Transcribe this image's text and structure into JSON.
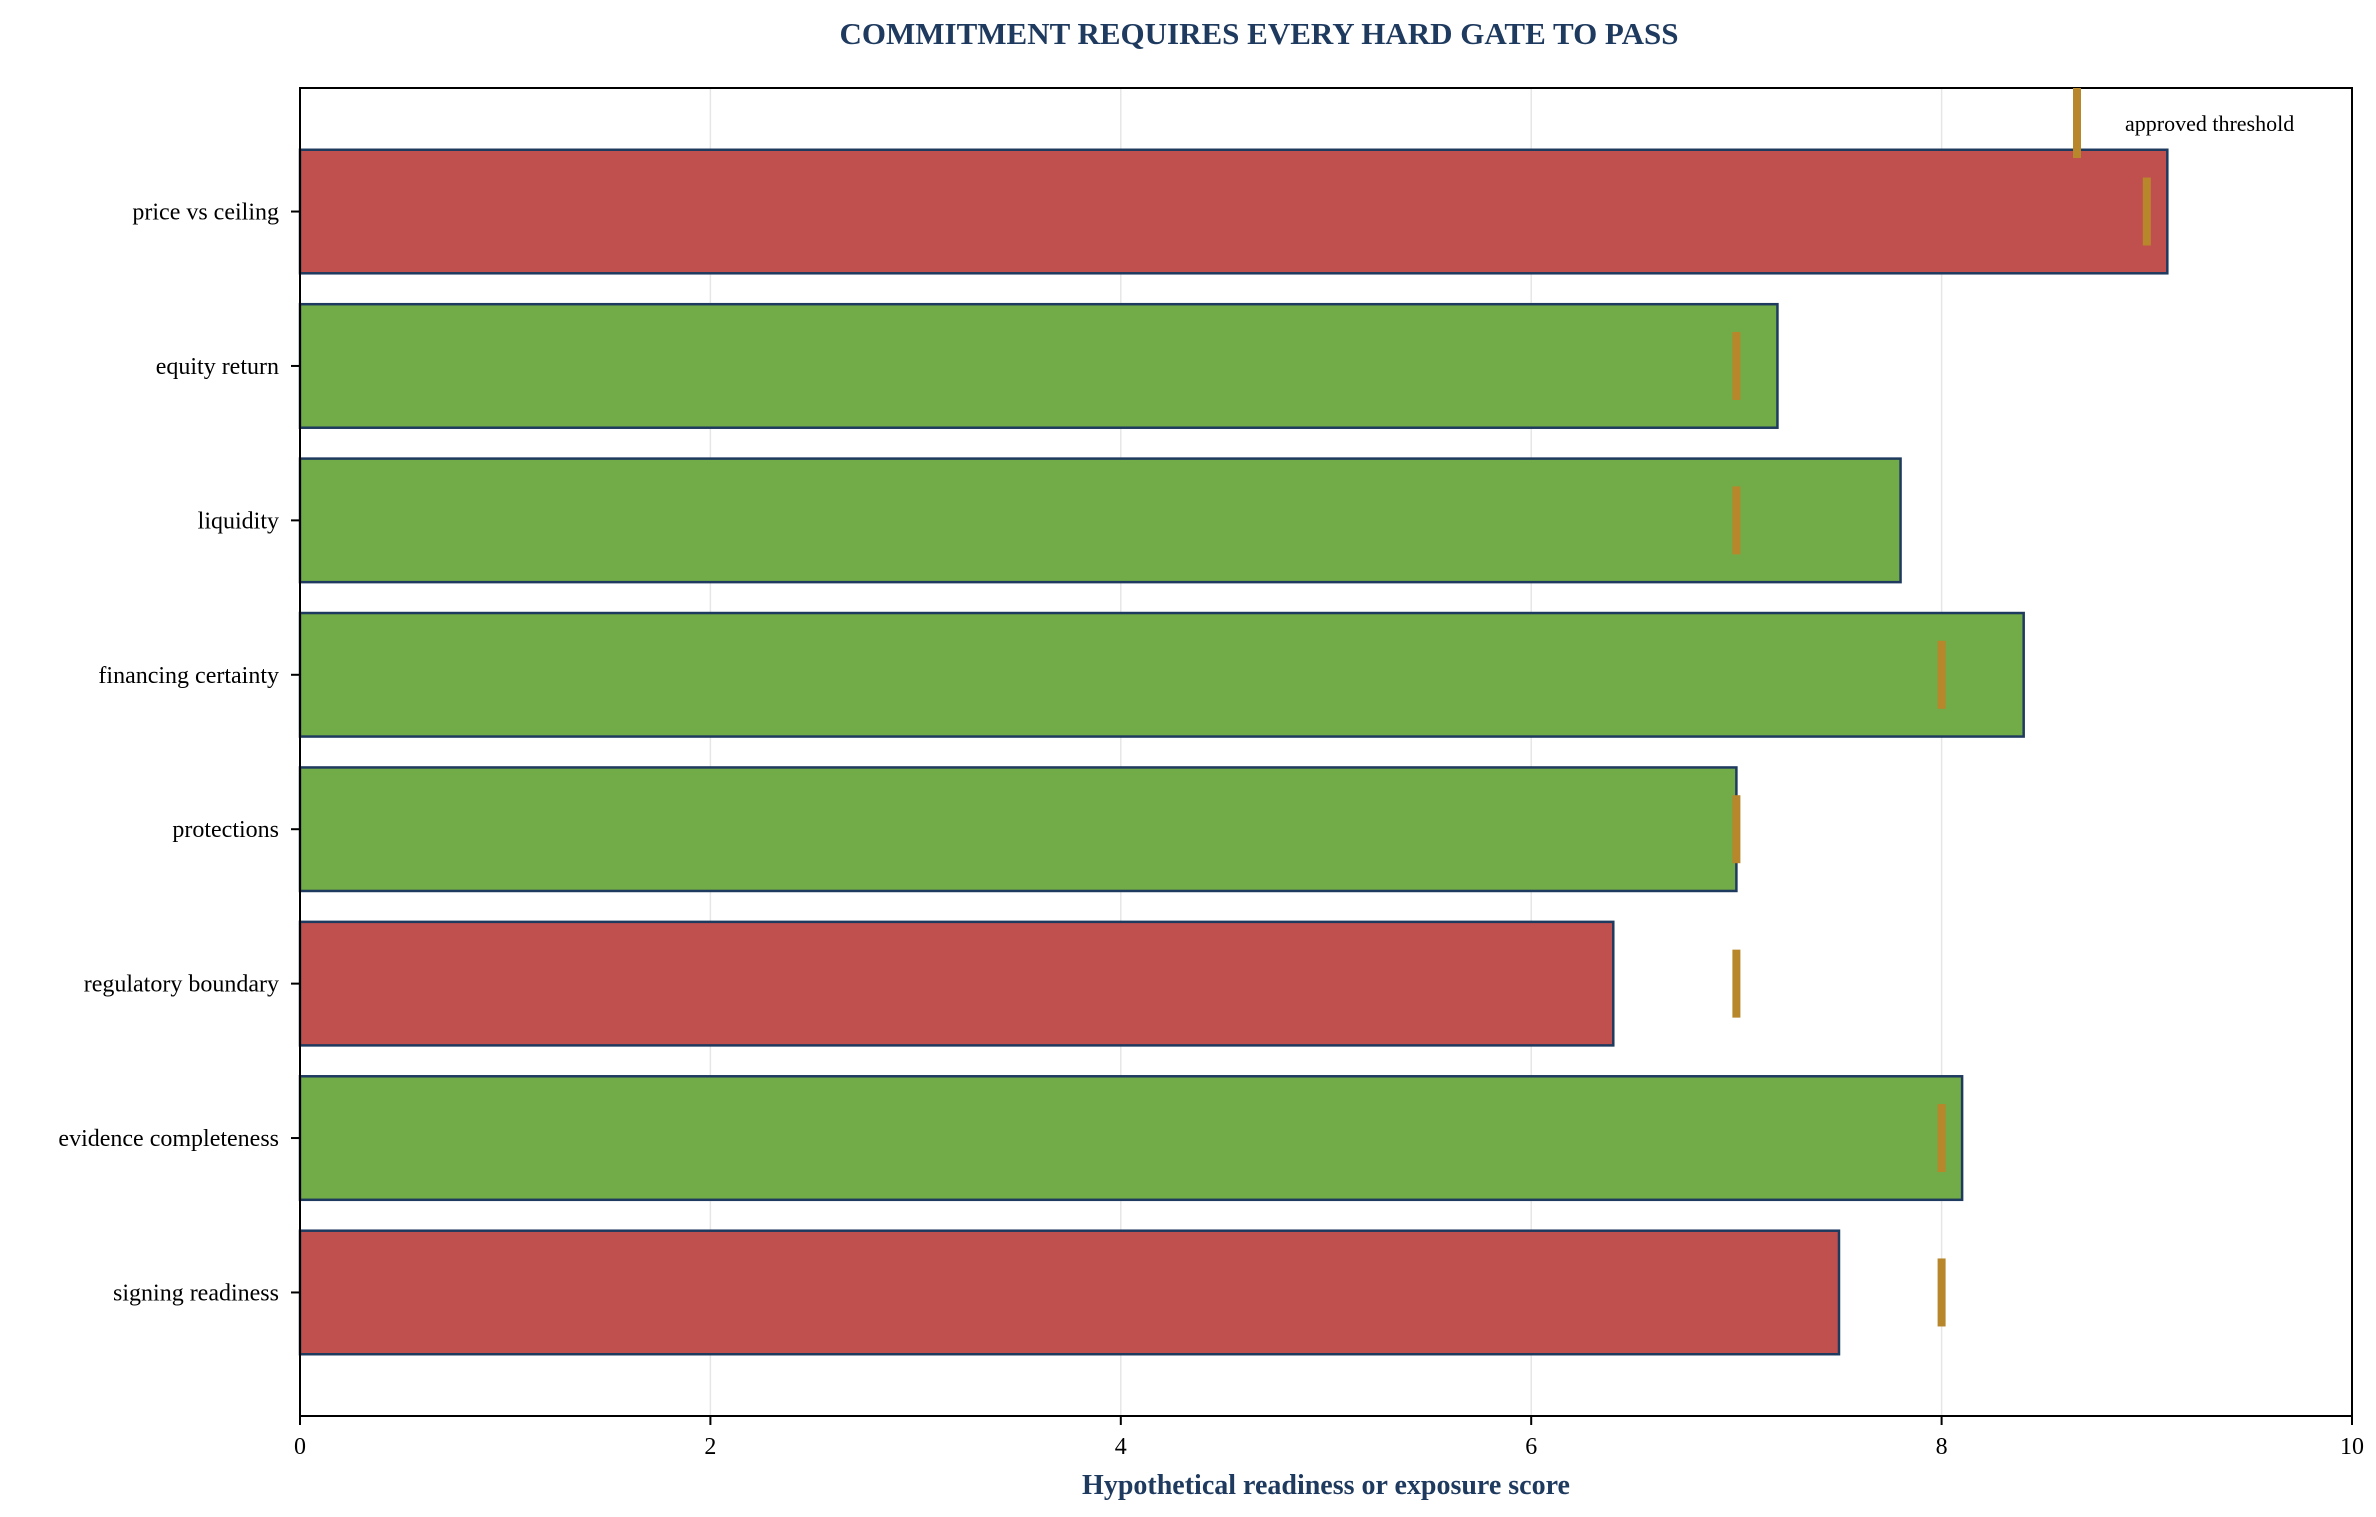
{
  "chart_data": {
    "type": "bar",
    "orientation": "horizontal",
    "title": "COMMITMENT REQUIRES EVERY HARD GATE TO PASS",
    "xlabel": "Hypothetical readiness or exposure score",
    "xlim": [
      0,
      10
    ],
    "xticks": [
      "0",
      "2",
      "4",
      "6",
      "8",
      "10"
    ],
    "grid": "vertical",
    "legend": {
      "placement": "top-right",
      "entries": [
        {
          "label": "approved threshold",
          "marker": "threshold-tick"
        }
      ]
    },
    "categories": [
      "price vs ceiling",
      "equity return",
      "liquidity",
      "financing certainty",
      "protections",
      "regulatory boundary",
      "evidence completeness",
      "signing readiness"
    ],
    "values": [
      9.1,
      7.2,
      7.8,
      8.4,
      7.0,
      6.4,
      8.1,
      7.5
    ],
    "thresholds": [
      9.0,
      7.0,
      7.0,
      8.0,
      7.0,
      7.0,
      8.0,
      8.0
    ],
    "status": [
      "fail",
      "pass",
      "pass",
      "pass",
      "pass",
      "fail",
      "pass",
      "fail"
    ],
    "colors": {
      "pass": "#72ac48",
      "fail": "#c0504d",
      "edge": "#1f3a5f",
      "threshold": "#b8862b",
      "grid": "#e6e6e6"
    }
  }
}
